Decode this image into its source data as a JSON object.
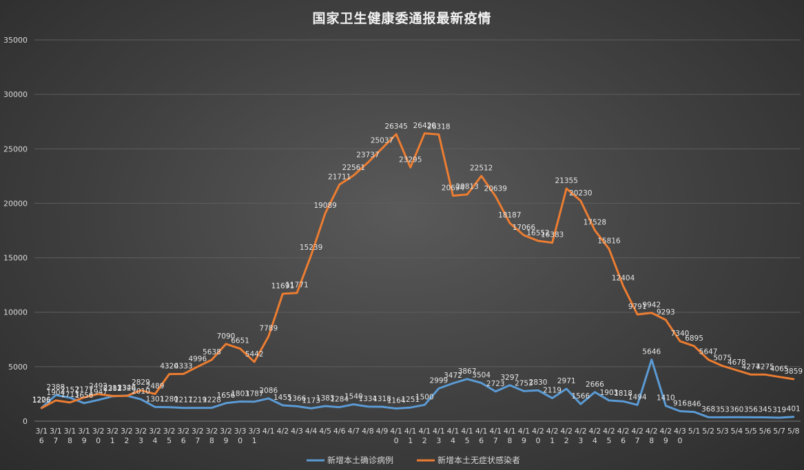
{
  "chart_data": {
    "type": "line",
    "title": "国家卫生健康委通报最新疫情",
    "xlabel": "",
    "ylabel": "",
    "ylim": [
      0,
      35000
    ],
    "yticks": [
      0,
      5000,
      10000,
      15000,
      20000,
      25000,
      30000,
      35000
    ],
    "grid": true,
    "legend_position": "bottom",
    "categories": [
      "3/16",
      "3/17",
      "3/18",
      "3/19",
      "3/20",
      "3/21",
      "3/22",
      "3/23",
      "3/24",
      "3/25",
      "3/26",
      "3/27",
      "3/28",
      "3/29",
      "3/30",
      "3/31",
      "4/1",
      "4/2",
      "4/3",
      "4/4",
      "4/5",
      "4/6",
      "4/7",
      "4/8",
      "4/9",
      "4/10",
      "4/11",
      "4/12",
      "4/13",
      "4/14",
      "4/15",
      "4/16",
      "4/17",
      "4/18",
      "4/19",
      "4/20",
      "4/21",
      "4/22",
      "4/23",
      "4/24",
      "4/25",
      "4/26",
      "4/27",
      "4/28",
      "4/29",
      "4/30",
      "5/1",
      "5/2",
      "5/3",
      "5/4",
      "5/5",
      "5/6",
      "5/7",
      "5/8"
    ],
    "series": [
      {
        "name": "新增本土确诊病例",
        "color": "#5b9bd5",
        "values": [
          1226,
          2388,
          2157,
          1656,
          1947,
          2281,
          2346,
          2010,
          1301,
          1280,
          1217,
          1219,
          1228,
          1656,
          1803,
          1787,
          2086,
          1455,
          1366,
          1173,
          1383,
          1284,
          1540,
          1334,
          1318,
          1164,
          1251,
          1500,
          2999,
          3472,
          3867,
          3504,
          2723,
          3297,
          2753,
          2830,
          2119,
          2971,
          1566,
          2666,
          1903,
          1818,
          1494,
          5646,
          1410,
          916,
          846,
          368,
          353,
          360,
          356,
          345,
          319,
          401
        ]
      },
      {
        "name": "新增本土无症状感染者",
        "color": "#ed7d31",
        "values": [
          1206,
          1904,
          1713,
          2177,
          2492,
          2313,
          2320,
          2829,
          2489,
          4320,
          4333,
          4996,
          5638,
          7090,
          6651,
          5442,
          7789,
          11691,
          11771,
          15239,
          19089,
          21711,
          22561,
          23737,
          25037,
          26345,
          23295,
          26420,
          26318,
          20694,
          20813,
          22512,
          20639,
          18187,
          17066,
          16552,
          16383,
          21355,
          20230,
          17528,
          15816,
          12404,
          9791,
          9942,
          9293,
          7340,
          6895,
          5647,
          5075,
          4678,
          4277,
          4275,
          4065,
          3859
        ]
      }
    ]
  }
}
